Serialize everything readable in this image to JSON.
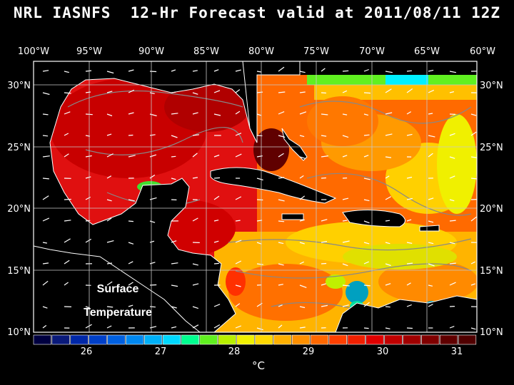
{
  "title": "NRL IASNFS  12-Hr Forecast valid at 2011/08/11 12Z",
  "map": {
    "lon_ticks": [
      "100°W",
      "95°W",
      "90°W",
      "85°W",
      "80°W",
      "75°W",
      "70°W",
      "65°W",
      "60°W"
    ],
    "lat_ticks": [
      "30°N",
      "25°N",
      "20°N",
      "15°N",
      "10°N"
    ],
    "annotation_line1": "Surface",
    "annotation_line2": "Temperature"
  },
  "colorbar": {
    "unit": "°C",
    "labels": [
      "26",
      "27",
      "28",
      "29",
      "30",
      "31"
    ],
    "colors": [
      "#000040",
      "#0a1a7a",
      "#0028a8",
      "#0040c8",
      "#0060e0",
      "#0088f0",
      "#00b0f8",
      "#00d8ff",
      "#00ff90",
      "#60f020",
      "#b8f000",
      "#f0f000",
      "#ffd800",
      "#ffb000",
      "#ff9000",
      "#ff6800",
      "#ff4000",
      "#f02000",
      "#e00000",
      "#c00000",
      "#a00000",
      "#800000",
      "#600000",
      "#500000"
    ]
  },
  "palette": {
    "land": "#000000",
    "coast": "#ffffff",
    "grid": "#c8c8c8",
    "isotherm": "#888888"
  }
}
